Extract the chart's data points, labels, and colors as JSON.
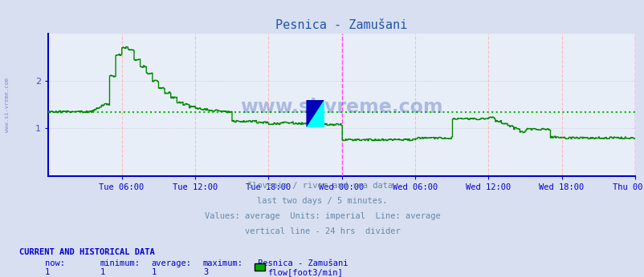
{
  "title": "Pesnica - Zamušani",
  "background_color": "#d8dff0",
  "plot_bg_color": "#e8eef8",
  "line_color": "#008800",
  "avg_line_color": "#00bb00",
  "avg_value": 1.35,
  "ylim": [
    0,
    3.0
  ],
  "yticks": [
    1,
    2
  ],
  "tick_label_color": "#4455cc",
  "title_color": "#2255aa",
  "grid_color_h": "#ccccdd",
  "grid_color_v": "#ffbbbb",
  "vline_color_divider": "#ff44ff",
  "axis_color": "#0000cc",
  "xticklabels": [
    "Tue 06:00",
    "Tue 12:00",
    "Tue 18:00",
    "Wed 00:00",
    "Wed 06:00",
    "Wed 12:00",
    "Wed 18:00",
    "Thu 00:00"
  ],
  "footer_lines": [
    "Slovenia / river and sea data.",
    "last two days / 5 minutes.",
    "Values: average  Units: imperial  Line: average",
    "vertical line - 24 hrs  divider"
  ],
  "footer_color": "#6688aa",
  "bottom_label_color": "#0000cc",
  "watermark": "www.si-vreme.com",
  "watermark_color": "#2244aa",
  "watermark_alpha": 0.3,
  "current_data_label": "CURRENT AND HISTORICAL DATA",
  "stats_labels": [
    "now:",
    "minimum:",
    "average:",
    "maximum:",
    "Pesnica - Zamušani"
  ],
  "stats_values": [
    "1",
    "1",
    "1",
    "3"
  ],
  "legend_label": "flow[foot3/min]",
  "legend_color": "#00aa00",
  "n_points": 576,
  "total_hours": 48
}
